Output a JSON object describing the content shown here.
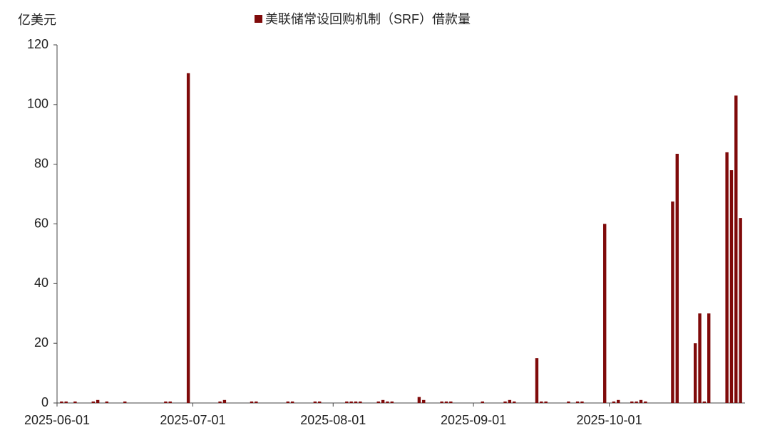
{
  "chart_data": {
    "type": "bar",
    "title": "美联储常设回购机制（SRF）借款量",
    "y_label": "亿美元",
    "series": [
      {
        "name": "美联储常设回购机制（SRF）借款量",
        "color": "#7f0a0a",
        "x": [
          "2025-06-02",
          "2025-06-03",
          "2025-06-05",
          "2025-06-09",
          "2025-06-10",
          "2025-06-12",
          "2025-06-16",
          "2025-06-25",
          "2025-06-26",
          "2025-06-30",
          "2025-07-07",
          "2025-07-08",
          "2025-07-14",
          "2025-07-15",
          "2025-07-22",
          "2025-07-23",
          "2025-07-28",
          "2025-07-29",
          "2025-08-04",
          "2025-08-05",
          "2025-08-06",
          "2025-08-07",
          "2025-08-11",
          "2025-08-12",
          "2025-08-13",
          "2025-08-14",
          "2025-08-20",
          "2025-08-21",
          "2025-08-25",
          "2025-08-26",
          "2025-08-27",
          "2025-09-03",
          "2025-09-08",
          "2025-09-09",
          "2025-09-10",
          "2025-09-15",
          "2025-09-16",
          "2025-09-17",
          "2025-09-22",
          "2025-09-24",
          "2025-09-25",
          "2025-09-30",
          "2025-10-02",
          "2025-10-03",
          "2025-10-06",
          "2025-10-07",
          "2025-10-08",
          "2025-10-09",
          "2025-10-15",
          "2025-10-16",
          "2025-10-20",
          "2025-10-21",
          "2025-10-22",
          "2025-10-23",
          "2025-10-27",
          "2025-10-28",
          "2025-10-29",
          "2025-10-30"
        ],
        "values": [
          0.5,
          0.5,
          0.5,
          0.5,
          1,
          0.5,
          0.5,
          0.5,
          0.5,
          110.5,
          0.5,
          1,
          0.5,
          0.5,
          0.5,
          0.5,
          0.5,
          0.5,
          0.5,
          0.5,
          0.5,
          0.5,
          0.5,
          1,
          0.5,
          0.5,
          2,
          1,
          0.5,
          0.5,
          0.5,
          0.5,
          0.5,
          1,
          0.5,
          15,
          0.5,
          0.5,
          0.5,
          0.5,
          0.5,
          60,
          0.5,
          1,
          0.5,
          0.5,
          1,
          0.5,
          67.5,
          83.5,
          20,
          30,
          0.5,
          30,
          84,
          78,
          103,
          62
        ]
      }
    ],
    "xlim": [
      "2025-06-01",
      "2025-10-31"
    ],
    "xticks": [
      "2025-06-01",
      "2025-07-01",
      "2025-08-01",
      "2025-09-01",
      "2025-10-01"
    ],
    "ylim": [
      0,
      120
    ],
    "yticks": [
      0,
      20,
      40,
      60,
      80,
      100,
      120
    ],
    "grid": false
  }
}
